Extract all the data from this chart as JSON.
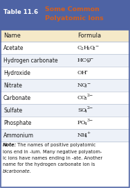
{
  "title_label": "Table 11.6",
  "title_text1": "Some Common",
  "title_text2": "Polyatomic Ions",
  "title_bg": "#4e63a4",
  "title_text_color": "#d45f1e",
  "header_bg": "#f5e9c8",
  "row_bg_alt": "#edf1f8",
  "names": [
    "Acetate",
    "Hydrogen carbonate",
    "Hydroxide",
    "Nitrate",
    "Carbonate",
    "Sulfate",
    "Phosphate",
    "Ammonium"
  ],
  "note_italic_prefix": "Note:",
  "note_body": " The names of positive polyatomic ions end in -ium. Many negative polyatomic ions have names ending in -ate. Another name for the hydrogen carbonate ion is bicarbonate.",
  "line_color": "#a8b4c8",
  "text_color": "#1a1a1a",
  "border_color": "#4e63a4",
  "fig_w": 1.88,
  "fig_h": 2.71,
  "dpi": 100
}
